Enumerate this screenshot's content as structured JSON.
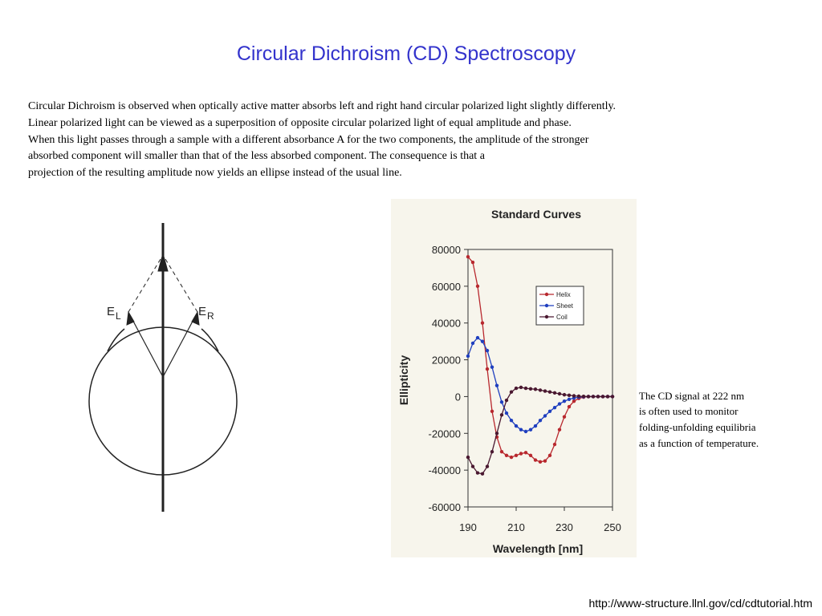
{
  "title": "Circular Dichroism (CD) Spectroscopy",
  "paragraph": [
    "Circular Dichroism is observed when optically active matter absorbs left and right hand circular polarized light slightly differently.",
    "Linear polarized light can be viewed as a superposition of opposite circular polarized light of equal amplitude and phase.",
    "When this light passes through a sample with a different absorbance A for the two components, the amplitude of the stronger",
    "absorbed component will smaller than that of the less absorbed component. The consequence is that a",
    "projection of the resulting amplitude now yields an ellipse instead of the usual line."
  ],
  "diagram": {
    "left_label": "E",
    "left_sub": "L",
    "right_label": "E",
    "right_sub": "R"
  },
  "chart_data": {
    "type": "line",
    "title": "Standard Curves",
    "xlabel": "Wavelength [nm]",
    "ylabel": "Ellipticity",
    "x": [
      190,
      192,
      194,
      196,
      198,
      200,
      202,
      204,
      206,
      208,
      210,
      212,
      214,
      216,
      218,
      220,
      222,
      224,
      226,
      228,
      230,
      232,
      234,
      236,
      238,
      240,
      242,
      244,
      246,
      248,
      250
    ],
    "series": [
      {
        "name": "Helix",
        "color": "#b8282e",
        "values": [
          76000,
          73000,
          60000,
          40000,
          15000,
          -8000,
          -22000,
          -30000,
          -32000,
          -33000,
          -32000,
          -31000,
          -30500,
          -32000,
          -34500,
          -35500,
          -35000,
          -32000,
          -26000,
          -18000,
          -11000,
          -5500,
          -2500,
          -1000,
          -300,
          0,
          0,
          0,
          0,
          0,
          0
        ]
      },
      {
        "name": "Sheet",
        "color": "#1f3fbf",
        "values": [
          22000,
          29000,
          32000,
          30000,
          25000,
          16000,
          6000,
          -3000,
          -9000,
          -13000,
          -16000,
          -18000,
          -19000,
          -18000,
          -16000,
          -13000,
          -10500,
          -8000,
          -6000,
          -4000,
          -2500,
          -1500,
          -800,
          -300,
          -100,
          0,
          0,
          0,
          0,
          0,
          0
        ]
      },
      {
        "name": "Coil",
        "color": "#4a1830",
        "values": [
          -33000,
          -38000,
          -41500,
          -42000,
          -38000,
          -30000,
          -20000,
          -10000,
          -2000,
          2500,
          4500,
          5000,
          4500,
          4200,
          4000,
          3500,
          3000,
          2500,
          2000,
          1500,
          1000,
          700,
          400,
          200,
          100,
          0,
          0,
          0,
          0,
          0,
          0
        ]
      }
    ],
    "xlim": [
      190,
      250
    ],
    "xticks": [
      190,
      210,
      230,
      250
    ],
    "ylim": [
      -60000,
      80000
    ],
    "yticks": [
      -60000,
      -40000,
      -20000,
      0,
      20000,
      40000,
      60000,
      80000
    ],
    "legend": "upper right"
  },
  "caption": [
    "The CD signal at 222 nm",
    "is often  used to monitor",
    "folding-unfolding equilibria",
    "as a function of temperature."
  ],
  "url": "http://www-structure.llnl.gov/cd/cdtutorial.htm"
}
